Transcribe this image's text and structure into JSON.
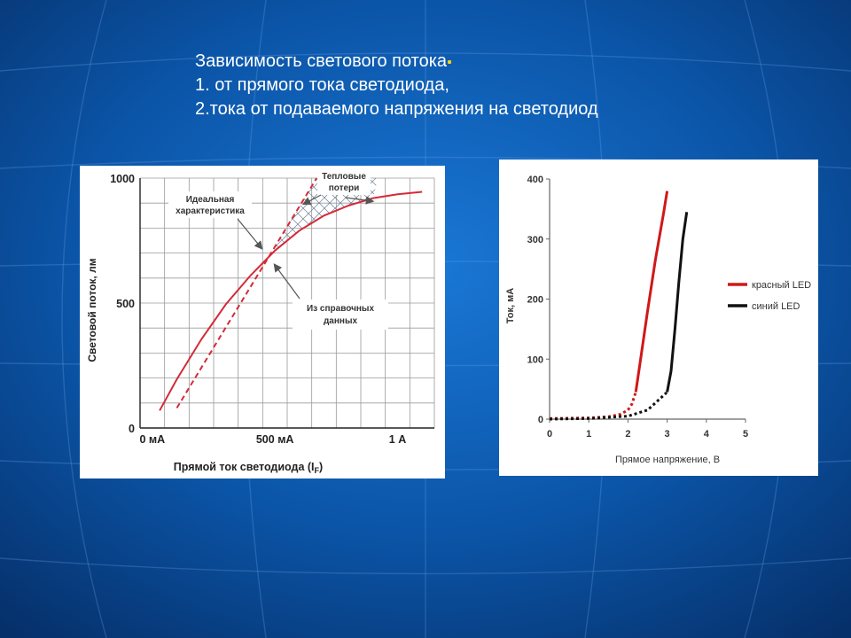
{
  "slide": {
    "title_lines": [
      "Зависимость светового потока",
      "1. от прямого тока светодиода,",
      "2.тока от подаваемого напряжения на светодиод"
    ]
  },
  "chart_data": [
    {
      "type": "line",
      "xlabel": "Прямой ток светодиода (I",
      "xlabel_sub": "F",
      "xlabel_end": ")",
      "ylabel": "Световой поток, лм",
      "x_ticks": [
        "0 мА",
        "500 мА",
        "1 А"
      ],
      "y_ticks": [
        "0",
        "500",
        "1000"
      ],
      "xlim": [
        -0.05,
        1.15
      ],
      "ylim": [
        0,
        1000
      ],
      "grid": true,
      "series": [
        {
          "key": "ideal",
          "style": "dashed",
          "color": "#d42a38",
          "x": [
            0.1,
            0.67
          ],
          "y": [
            80,
            1000
          ]
        },
        {
          "key": "datasheet",
          "style": "solid",
          "color": "#d42a38",
          "x": [
            0.03,
            0.1,
            0.2,
            0.3,
            0.4,
            0.5,
            0.6,
            0.7,
            0.8,
            0.9,
            1.0,
            1.1
          ],
          "y": [
            70,
            195,
            355,
            495,
            610,
            710,
            790,
            850,
            890,
            920,
            935,
            945
          ]
        }
      ],
      "annotations": [
        {
          "key": "ideal",
          "lines": [
            "Идеальная",
            "характеристика"
          ]
        },
        {
          "key": "losses",
          "lines": [
            "Тепловые",
            "потери"
          ]
        },
        {
          "key": "datasheet",
          "lines": [
            "Из справочных",
            "данных"
          ]
        }
      ]
    },
    {
      "type": "line",
      "xlabel": "Прямое напряжение, В",
      "ylabel": "Ток, мА",
      "x_ticks": [
        "0",
        "1",
        "2",
        "3",
        "4",
        "5"
      ],
      "y_ticks": [
        "0",
        "100",
        "200",
        "300",
        "400"
      ],
      "xlim": [
        0,
        5
      ],
      "ylim": [
        0,
        400
      ],
      "legend": "right",
      "series": [
        {
          "name": "красный LED",
          "color": "#d01818",
          "x": [
            0,
            1.0,
            1.5,
            1.8,
            2.0,
            2.1,
            2.2,
            2.3,
            2.5,
            2.7,
            2.9,
            3.0
          ],
          "y": [
            1,
            2,
            4,
            8,
            15,
            25,
            45,
            90,
            180,
            265,
            340,
            380
          ],
          "dashed_until": 2.2
        },
        {
          "name": "синий LED",
          "color": "#111111",
          "x": [
            0,
            1.0,
            2.0,
            2.5,
            3.0,
            3.1,
            3.2,
            3.3,
            3.4,
            3.5
          ],
          "y": [
            0,
            1,
            5,
            15,
            45,
            80,
            150,
            230,
            300,
            345
          ],
          "dashed_until": 3.0
        }
      ]
    }
  ]
}
